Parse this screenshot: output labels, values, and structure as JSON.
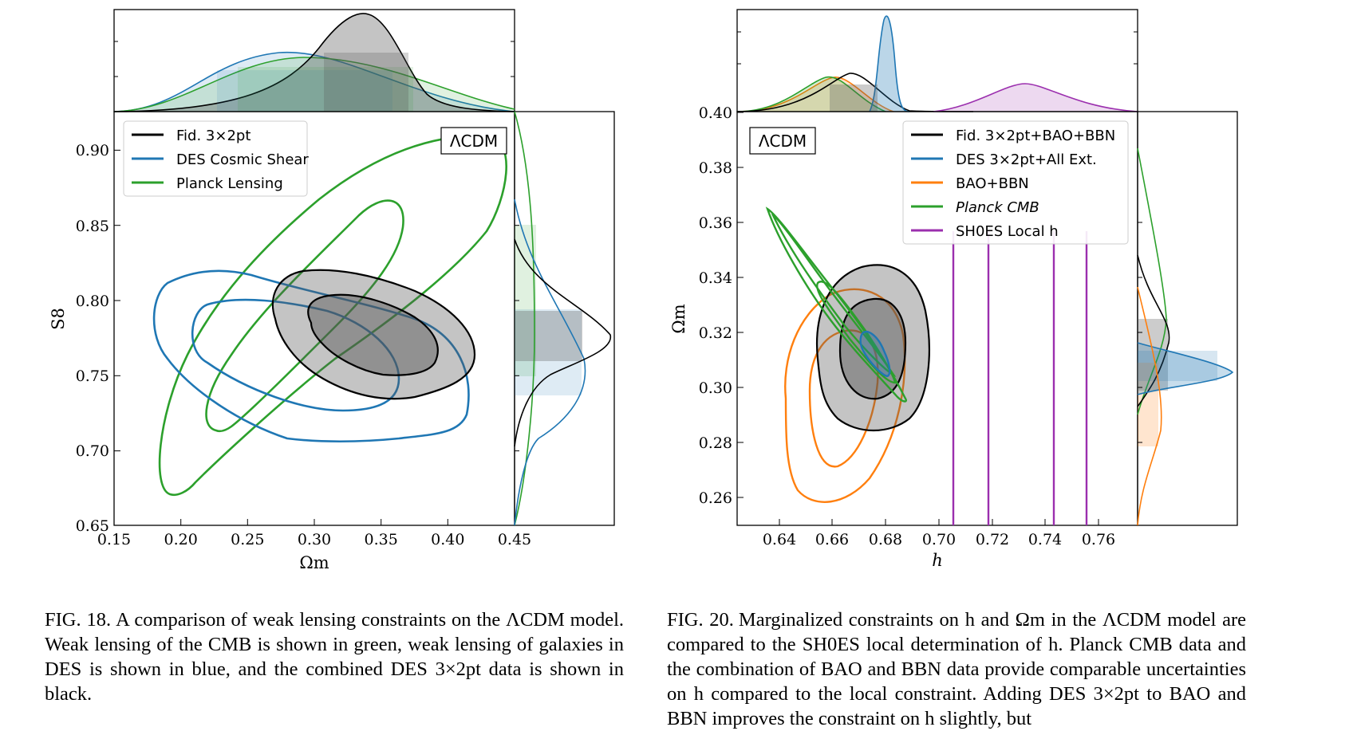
{
  "figures": [
    {
      "label": "FIG. 18.",
      "caption": "A comparison of weak lensing constraints on the ΛCDM model. Weak lensing of the CMB is shown in green, weak lensing of galaxies in DES is shown in blue, and the combined DES 3×2pt data is shown in black.",
      "panel_tag": "ΛCDM",
      "chart_data": {
        "type": "contour",
        "xlabel": "Ωm",
        "ylabel": "S8",
        "xlim": [
          0.15,
          0.45
        ],
        "ylim": [
          0.65,
          0.93
        ],
        "xticks": [
          "0.15",
          "0.20",
          "0.25",
          "0.30",
          "0.35",
          "0.40",
          "0.45"
        ],
        "yticks": [
          "0.65",
          "0.70",
          "0.75",
          "0.80",
          "0.85",
          "0.90"
        ],
        "legend_position": "top-left",
        "series": [
          {
            "name": "Fid. 3×2pt",
            "color": "#000000",
            "mean_x": 0.335,
            "mean_y": 0.777
          },
          {
            "name": "DES Cosmic Shear",
            "color": "#1f77b4",
            "mean_x": 0.28,
            "mean_y": 0.77
          },
          {
            "name": "Planck Lensing",
            "color": "#2ca02c",
            "mean_x": 0.3,
            "mean_y": 0.79
          }
        ]
      }
    },
    {
      "label": "FIG. 20.",
      "caption": "Marginalized constraints on h and Ωm in the ΛCDM model are compared to the SH0ES local determination of h. Planck CMB data and the combination of BAO and BBN data provide comparable uncertainties on h compared to the local constraint. Adding DES 3×2pt to BAO and BBN improves the constraint on h slightly, but",
      "panel_tag": "ΛCDM",
      "chart_data": {
        "type": "contour",
        "xlabel": "h",
        "ylabel": "Ωm",
        "xlim": [
          0.625,
          0.775
        ],
        "ylim": [
          0.25,
          0.4
        ],
        "xticks": [
          "0.64",
          "0.66",
          "0.68",
          "0.70",
          "0.72",
          "0.74",
          "0.76"
        ],
        "yticks": [
          "0.26",
          "0.28",
          "0.30",
          "0.32",
          "0.34",
          "0.36",
          "0.38",
          "0.40"
        ],
        "legend_position": "top-right",
        "series": [
          {
            "name": "Fid. 3×2pt+BAO+BBN",
            "color": "#000000",
            "mean_x": 0.675,
            "mean_y": 0.316
          },
          {
            "name": "DES 3×2pt+All Ext.",
            "color": "#1f77b4",
            "mean_x": 0.68,
            "mean_y": 0.306
          },
          {
            "name": "BAO+BBN",
            "color": "#ff7f0e",
            "mean_x": 0.67,
            "mean_y": 0.295
          },
          {
            "name": "Planck CMB",
            "color": "#2ca02c",
            "mean_x": 0.666,
            "mean_y": 0.32
          },
          {
            "name": "SH0ES Local h",
            "color": "#9b2fae",
            "mean_x": 0.732,
            "sigma_x": 0.013
          }
        ]
      }
    }
  ]
}
